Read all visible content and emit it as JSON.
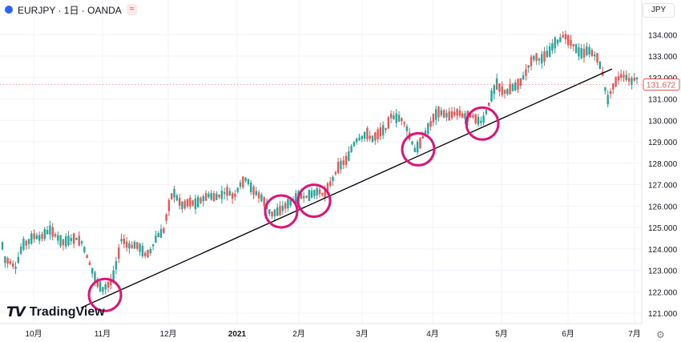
{
  "header": {
    "symbol_title": "EURJPY · 1日 · OANDA",
    "badge": "≈",
    "currency": "JPY"
  },
  "logo": {
    "text": "TradingView"
  },
  "colors": {
    "up": "#26a69a",
    "down": "#ef5350",
    "grid": "#f0f3fa",
    "circle": "#e0127a",
    "trend": "#000000"
  },
  "chart_data": {
    "type": "candlestick",
    "y_ticks": [
      "121.000",
      "122.000",
      "123.000",
      "124.000",
      "125.000",
      "126.000",
      "127.000",
      "128.000",
      "129.000",
      "130.000",
      "131.000",
      "132.000",
      "133.000",
      "134.000"
    ],
    "ylim": [
      120.55,
      134.6
    ],
    "x_ticks": [
      "10月",
      "11月",
      "12月",
      "2021",
      "2月",
      "3月",
      "4月",
      "5月",
      "6月",
      "7月"
    ],
    "last_price": "131.672",
    "last_price_value": 131.672,
    "points": [
      [
        0,
        124.8
      ],
      [
        6,
        123.5
      ],
      [
        12,
        123.4
      ],
      [
        20,
        123.1
      ],
      [
        28,
        124.2
      ],
      [
        35,
        124.3
      ],
      [
        42,
        124.6
      ],
      [
        50,
        124.5
      ],
      [
        56,
        124.7
      ],
      [
        63,
        124.9
      ],
      [
        70,
        124.6
      ],
      [
        78,
        124.3
      ],
      [
        86,
        124.4
      ],
      [
        94,
        124.5
      ],
      [
        102,
        124.3
      ],
      [
        110,
        123.5
      ],
      [
        116,
        122.9
      ],
      [
        122,
        122.4
      ],
      [
        128,
        122.1
      ],
      [
        134,
        122.3
      ],
      [
        140,
        122.5
      ],
      [
        146,
        123.4
      ],
      [
        152,
        124.5
      ],
      [
        158,
        124.2
      ],
      [
        164,
        124.1
      ],
      [
        170,
        124.2
      ],
      [
        176,
        124.0
      ],
      [
        182,
        123.7
      ],
      [
        188,
        123.9
      ],
      [
        196,
        124.6
      ],
      [
        204,
        124.8
      ],
      [
        210,
        125.9
      ],
      [
        216,
        126.7
      ],
      [
        222,
        126.3
      ],
      [
        228,
        126.0
      ],
      [
        236,
        126.2
      ],
      [
        244,
        126.1
      ],
      [
        252,
        126.3
      ],
      [
        260,
        126.5
      ],
      [
        268,
        126.4
      ],
      [
        276,
        126.5
      ],
      [
        284,
        126.7
      ],
      [
        292,
        126.4
      ],
      [
        300,
        127.0
      ],
      [
        308,
        127.3
      ],
      [
        314,
        126.8
      ],
      [
        320,
        126.6
      ],
      [
        326,
        126.4
      ],
      [
        332,
        126.1
      ],
      [
        338,
        125.6
      ],
      [
        344,
        125.7
      ],
      [
        350,
        125.8
      ],
      [
        356,
        126.0
      ],
      [
        362,
        126.2
      ],
      [
        368,
        126.3
      ],
      [
        374,
        126.5
      ],
      [
        380,
        126.4
      ],
      [
        386,
        126.5
      ],
      [
        392,
        126.6
      ],
      [
        398,
        126.7
      ],
      [
        404,
        126.5
      ],
      [
        410,
        126.9
      ],
      [
        416,
        127.3
      ],
      [
        422,
        127.8
      ],
      [
        428,
        128.0
      ],
      [
        434,
        128.2
      ],
      [
        440,
        128.8
      ],
      [
        446,
        129.1
      ],
      [
        452,
        129.2
      ],
      [
        458,
        129.4
      ],
      [
        464,
        129.1
      ],
      [
        470,
        129.3
      ],
      [
        476,
        129.5
      ],
      [
        482,
        129.6
      ],
      [
        488,
        130.2
      ],
      [
        494,
        130.1
      ],
      [
        500,
        130.1
      ],
      [
        506,
        129.8
      ],
      [
        512,
        129.2
      ],
      [
        518,
        128.6
      ],
      [
        524,
        128.9
      ],
      [
        530,
        129.4
      ],
      [
        536,
        129.7
      ],
      [
        542,
        130.2
      ],
      [
        548,
        130.4
      ],
      [
        554,
        130.3
      ],
      [
        560,
        130.2
      ],
      [
        566,
        130.3
      ],
      [
        572,
        130.4
      ],
      [
        578,
        130.2
      ],
      [
        584,
        130.2
      ],
      [
        590,
        130.2
      ],
      [
        596,
        130.0
      ],
      [
        602,
        129.9
      ],
      [
        608,
        130.5
      ],
      [
        614,
        131.2
      ],
      [
        620,
        131.7
      ],
      [
        626,
        131.4
      ],
      [
        632,
        131.3
      ],
      [
        638,
        131.5
      ],
      [
        644,
        131.6
      ],
      [
        650,
        131.8
      ],
      [
        656,
        132.2
      ],
      [
        662,
        132.7
      ],
      [
        668,
        133.0
      ],
      [
        674,
        132.8
      ],
      [
        680,
        133.0
      ],
      [
        686,
        133.2
      ],
      [
        692,
        133.6
      ],
      [
        698,
        133.7
      ],
      [
        704,
        134.0
      ],
      [
        710,
        133.7
      ],
      [
        716,
        133.5
      ],
      [
        722,
        133.2
      ],
      [
        728,
        133.1
      ],
      [
        734,
        133.3
      ],
      [
        740,
        133.1
      ],
      [
        746,
        132.9
      ],
      [
        752,
        132.2
      ],
      [
        758,
        130.9
      ],
      [
        764,
        131.5
      ],
      [
        770,
        131.9
      ],
      [
        776,
        132.1
      ],
      [
        782,
        132.0
      ],
      [
        788,
        131.8
      ],
      [
        794,
        132.0
      ],
      [
        800,
        131.7
      ]
    ],
    "trend_line": {
      "start": [
        101,
        121.25
      ],
      "end": [
        764,
        132.4
      ]
    },
    "circles": [
      [
        131,
        121.85
      ],
      [
        351,
        125.75
      ],
      [
        392,
        126.25
      ],
      [
        522,
        128.65
      ],
      [
        602,
        129.85
      ]
    ]
  }
}
